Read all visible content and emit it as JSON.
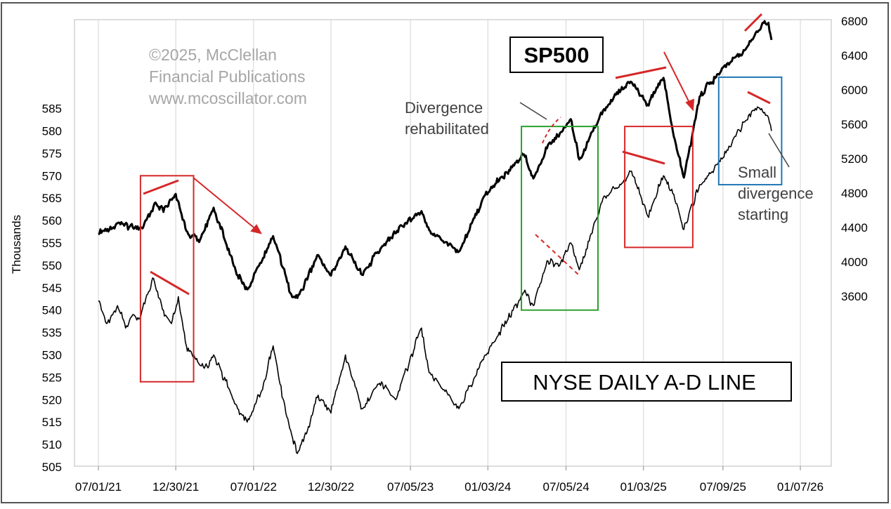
{
  "watermark": [
    "©2025, McClellan",
    "Financial Publications",
    "www.mcoscillator.com"
  ],
  "chart_data": {
    "type": "line",
    "xlabel": "",
    "ylabel": "Thousands",
    "y2label": "",
    "x_ticks": [
      "07/01/21",
      "12/30/21",
      "07/01/22",
      "12/30/22",
      "07/05/23",
      "01/03/24",
      "07/05/24",
      "01/03/25",
      "07/09/25",
      "01/07/26"
    ],
    "x_range": [
      "2021-07-01",
      "2026-01-07"
    ],
    "y_left_ticks": [
      505,
      510,
      515,
      520,
      525,
      530,
      535,
      540,
      545,
      550,
      555,
      560,
      565,
      570,
      575,
      580,
      585
    ],
    "y_left_range": [
      505,
      590
    ],
    "y_right_ticks": [
      3600,
      4000,
      4400,
      4800,
      5200,
      5600,
      6000,
      6400,
      6800
    ],
    "y_right_range": [
      3600,
      6800
    ],
    "grid": "vertical",
    "series": [
      {
        "name": "SP500",
        "axis": "right",
        "color": "#000000",
        "points": [
          [
            "2021-07-01",
            4320
          ],
          [
            "2021-08-15",
            4450
          ],
          [
            "2021-09-20",
            4400
          ],
          [
            "2021-10-15",
            4410
          ],
          [
            "2021-11-10",
            4680
          ],
          [
            "2021-12-01",
            4580
          ],
          [
            "2021-12-30",
            4790
          ],
          [
            "2022-01-24",
            4360
          ],
          [
            "2022-02-23",
            4230
          ],
          [
            "2022-03-29",
            4630
          ],
          [
            "2022-05-20",
            3900
          ],
          [
            "2022-06-16",
            3680
          ],
          [
            "2022-08-16",
            4300
          ],
          [
            "2022-09-30",
            3590
          ],
          [
            "2022-10-12",
            3580
          ],
          [
            "2022-11-30",
            4080
          ],
          [
            "2022-12-30",
            3840
          ],
          [
            "2023-02-02",
            4180
          ],
          [
            "2023-03-13",
            3850
          ],
          [
            "2023-04-28",
            4170
          ],
          [
            "2023-06-15",
            4420
          ],
          [
            "2023-07-31",
            4590
          ],
          [
            "2023-08-18",
            4370
          ],
          [
            "2023-10-27",
            4120
          ],
          [
            "2023-12-28",
            4780
          ],
          [
            "2024-03-28",
            5250
          ],
          [
            "2024-04-19",
            4970
          ],
          [
            "2024-05-21",
            5320
          ],
          [
            "2024-07-16",
            5660
          ],
          [
            "2024-08-05",
            5190
          ],
          [
            "2024-09-30",
            5760
          ],
          [
            "2024-11-11",
            6000
          ],
          [
            "2024-12-06",
            6090
          ],
          [
            "2025-01-13",
            5830
          ],
          [
            "2025-02-19",
            6140
          ],
          [
            "2025-03-13",
            5520
          ],
          [
            "2025-04-08",
            4980
          ],
          [
            "2025-05-15",
            5920
          ],
          [
            "2025-07-09",
            6260
          ],
          [
            "2025-08-29",
            6460
          ],
          [
            "2025-10-08",
            6750
          ],
          [
            "2025-10-24",
            6780
          ],
          [
            "2025-10-31",
            6580
          ]
        ]
      },
      {
        "name": "NYSE DAILY A-D LINE",
        "axis": "left",
        "color": "#000000",
        "points": [
          [
            "2021-07-01",
            542
          ],
          [
            "2021-07-20",
            537
          ],
          [
            "2021-08-15",
            541
          ],
          [
            "2021-09-03",
            536
          ],
          [
            "2021-09-20",
            539
          ],
          [
            "2021-10-04",
            538
          ],
          [
            "2021-11-08",
            547
          ],
          [
            "2021-12-01",
            540
          ],
          [
            "2021-12-20",
            537
          ],
          [
            "2022-01-05",
            543
          ],
          [
            "2022-01-24",
            532
          ],
          [
            "2022-02-15",
            529
          ],
          [
            "2022-03-07",
            527
          ],
          [
            "2022-03-29",
            530
          ],
          [
            "2022-05-20",
            519
          ],
          [
            "2022-06-16",
            515
          ],
          [
            "2022-07-20",
            522
          ],
          [
            "2022-08-16",
            532
          ],
          [
            "2022-09-15",
            517
          ],
          [
            "2022-10-12",
            508
          ],
          [
            "2022-11-07",
            514
          ],
          [
            "2022-11-30",
            521
          ],
          [
            "2022-12-30",
            517
          ],
          [
            "2023-02-02",
            530
          ],
          [
            "2023-03-13",
            518
          ],
          [
            "2023-04-28",
            524
          ],
          [
            "2023-05-31",
            520
          ],
          [
            "2023-07-31",
            536
          ],
          [
            "2023-08-18",
            526
          ],
          [
            "2023-10-27",
            518
          ],
          [
            "2023-12-28",
            530
          ],
          [
            "2024-03-28",
            544
          ],
          [
            "2024-04-19",
            541
          ],
          [
            "2024-05-21",
            551
          ],
          [
            "2024-06-20",
            550
          ],
          [
            "2024-07-16",
            555
          ],
          [
            "2024-08-05",
            549
          ],
          [
            "2024-09-30",
            565
          ],
          [
            "2024-11-11",
            568
          ],
          [
            "2024-12-06",
            571
          ],
          [
            "2025-01-13",
            561
          ],
          [
            "2025-02-19",
            570
          ],
          [
            "2025-03-13",
            566
          ],
          [
            "2025-04-08",
            558
          ],
          [
            "2025-05-15",
            568
          ],
          [
            "2025-07-09",
            574
          ],
          [
            "2025-08-29",
            582
          ],
          [
            "2025-09-23",
            585
          ],
          [
            "2025-10-08",
            585
          ],
          [
            "2025-10-24",
            583
          ],
          [
            "2025-10-31",
            580
          ]
        ]
      }
    ],
    "annotations": [
      {
        "type": "text",
        "lines": [
          "SP500"
        ],
        "style": "boxed-bold"
      },
      {
        "type": "text",
        "lines": [
          "NYSE DAILY A-D LINE"
        ],
        "style": "boxed"
      },
      {
        "type": "text",
        "lines": [
          "Divergence",
          "rehabilitated"
        ]
      },
      {
        "type": "text",
        "lines": [
          "Small",
          "divergence",
          "starting"
        ]
      },
      {
        "type": "box",
        "color": "#d62728",
        "x": [
          "2021-10-08",
          "2022-02-10"
        ],
        "y_left": [
          524,
          570
        ]
      },
      {
        "type": "box",
        "color": "#2ca02c",
        "x": [
          "2024-03-22",
          "2024-09-18"
        ],
        "y_left": [
          540,
          581
        ]
      },
      {
        "type": "box",
        "color": "#d62728",
        "x": [
          "2024-11-20",
          "2025-04-29"
        ],
        "y_left": [
          554,
          581
        ]
      },
      {
        "type": "box",
        "color": "#1f77b4",
        "x": [
          "2025-06-29",
          "2025-11-24"
        ],
        "y_left": [
          568,
          592
        ]
      }
    ]
  }
}
